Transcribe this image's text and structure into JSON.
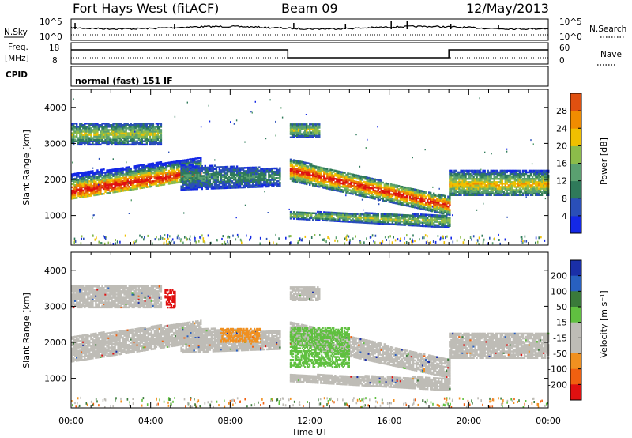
{
  "header": {
    "station": "Fort Hays West (fitACF)",
    "beam": "Beam 09",
    "date": "12/May/2013"
  },
  "strip_labels": {
    "left_top": "N.Sky",
    "left_top_ticks": [
      "10^5",
      "10^0"
    ],
    "right_top": "N.Search",
    "right_top_ticks": [
      "10^5",
      "10^0"
    ],
    "left_mid_1": "Freq.",
    "left_mid_2": "[MHz]",
    "left_mid_ticks": [
      "18",
      "8"
    ],
    "right_mid": "Nave",
    "right_mid_ticks": [
      "60",
      "0"
    ],
    "cpid_label": "CPID",
    "cpid_text": "normal (fast) 151 IF"
  },
  "colors": {
    "power": [
      "#1428e6",
      "#2a4fb8",
      "#2f7a5a",
      "#5aa070",
      "#8cbc4a",
      "#f0c000",
      "#f08c00",
      "#e05010",
      "#e01010"
    ],
    "velocity": [
      "#1a2fa8",
      "#2860c0",
      "#3a7a3a",
      "#60c040",
      "#bebcb6",
      "#bebcb6",
      "#f09020",
      "#f06010",
      "#e01010"
    ],
    "ground": "#bebcb6"
  },
  "chart_data": [
    {
      "type": "heatmap",
      "name": "power",
      "ylabel": "Slant Range [km]",
      "xlabel": "Time UT",
      "x_ticks": [
        "00:00",
        "04:00",
        "08:00",
        "12:00",
        "16:00",
        "20:00",
        "00:00"
      ],
      "y_ticks": [
        "1000",
        "2000",
        "3000",
        "4000"
      ],
      "ylim": [
        180,
        4500
      ],
      "xlim": [
        0,
        24
      ],
      "colorbar": {
        "label": "Power [dB]",
        "ticks": [
          "4",
          "8",
          "12",
          "16",
          "20",
          "24",
          "28"
        ]
      },
      "bands": [
        {
          "t0": 0.0,
          "t1": 6.5,
          "r0_start": 1450,
          "r0_end": 2000,
          "r1_start": 2150,
          "r1_end": 2600,
          "peak_start": 1650,
          "peak_end": 2200,
          "level": "high"
        },
        {
          "t0": 0.0,
          "t1": 4.5,
          "r0_start": 2950,
          "r0_end": 2950,
          "r1_start": 3550,
          "r1_end": 3550,
          "peak_start": 3250,
          "peak_end": 3250,
          "level": "mid"
        },
        {
          "t0": 5.5,
          "t1": 10.5,
          "r0_start": 1700,
          "r0_end": 1800,
          "r1_start": 2400,
          "r1_end": 2300,
          "peak_start": 2050,
          "peak_end": 2050,
          "level": "low"
        },
        {
          "t0": 11.0,
          "t1": 19.0,
          "r0_start": 1950,
          "r0_end": 1000,
          "r1_start": 2550,
          "r1_end": 1500,
          "peak_start": 2250,
          "peak_end": 1250,
          "level": "high"
        },
        {
          "t0": 11.0,
          "t1": 19.0,
          "r0_start": 900,
          "r0_end": 650,
          "r1_start": 1100,
          "r1_end": 1000,
          "peak_start": 1000,
          "peak_end": 820,
          "level": "mid"
        },
        {
          "t0": 11.0,
          "t1": 12.5,
          "r0_start": 3150,
          "r0_end": 3150,
          "r1_start": 3550,
          "r1_end": 3550,
          "peak_start": 3350,
          "peak_end": 3350,
          "level": "mid"
        },
        {
          "t0": 19.0,
          "t1": 24.0,
          "r0_start": 1550,
          "r0_end": 1550,
          "r1_start": 2250,
          "r1_end": 2250,
          "peak_start": 1850,
          "peak_end": 1850,
          "level": "midhigh"
        }
      ]
    },
    {
      "type": "heatmap",
      "name": "velocity",
      "ylabel": "Slant Range [km]",
      "xlabel": "Time UT",
      "x_ticks": [
        "00:00",
        "04:00",
        "08:00",
        "12:00",
        "16:00",
        "20:00",
        "00:00"
      ],
      "y_ticks": [
        "1000",
        "2000",
        "3000",
        "4000"
      ],
      "ylim": [
        180,
        4500
      ],
      "xlim": [
        0,
        24
      ],
      "colorbar": {
        "label": "Velocity [m s⁻¹]",
        "ticks": [
          "200",
          "100",
          "50",
          "15",
          "-15",
          "-50",
          "-100",
          "-200"
        ]
      },
      "features": [
        {
          "t0": 4.7,
          "t1": 5.2,
          "r0": 2950,
          "r1": 3450,
          "vel": -250
        },
        {
          "t0": 7.5,
          "t1": 9.5,
          "r0": 2000,
          "r1": 2400,
          "vel": -80
        },
        {
          "t0": 11.0,
          "t1": 14.0,
          "r0": 1300,
          "r1": 2400,
          "vel": 30
        }
      ]
    }
  ]
}
